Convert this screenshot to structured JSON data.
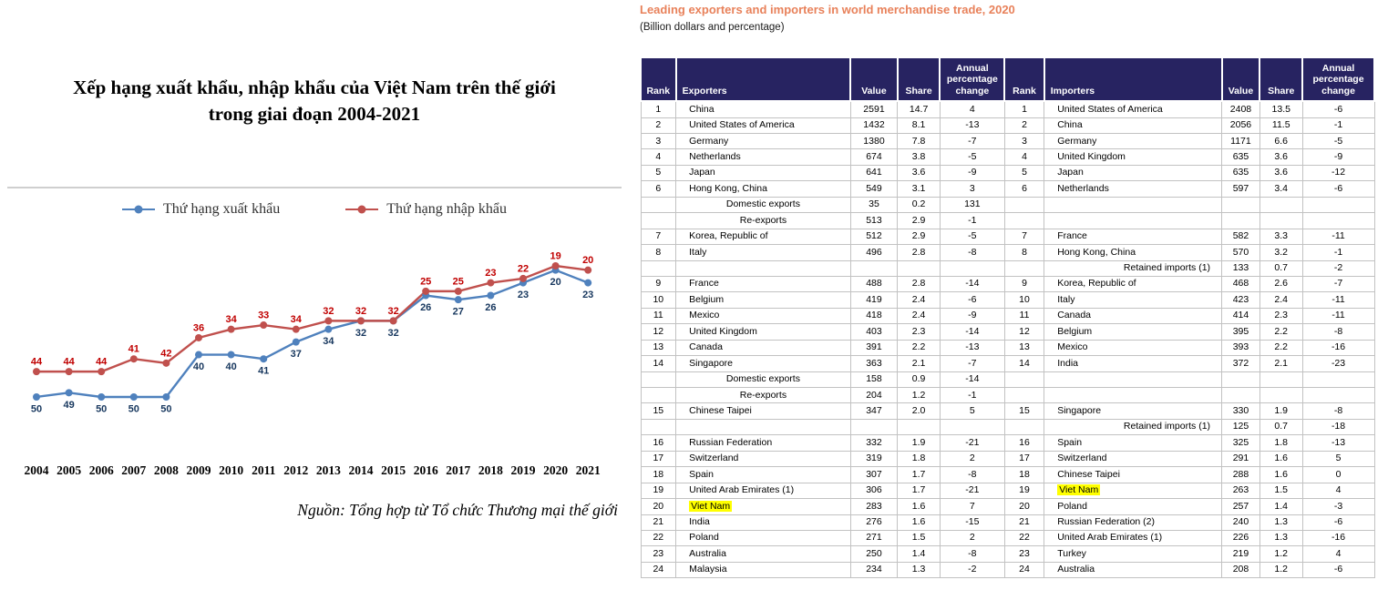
{
  "chart_panel": {
    "title_line1": "Xếp hạng xuất khẩu, nhập khẩu của Việt Nam trên thế giới",
    "title_line2": "trong giai đoạn 2004-2021",
    "source": "Nguồn: Tổng hợp từ Tổ chức Thương mại thế giới"
  },
  "table_panel": {
    "title": "Leading exporters and importers in world merchandise trade, 2020",
    "subtitle": "(Billion dollars and percentage)",
    "accent_color": "#e8815a",
    "header_bg": "#272361",
    "highlight_color": "#ffff00"
  },
  "chart_data": [
    {
      "type": "line",
      "title": "Xếp hạng xuất khẩu, nhập khẩu của Việt Nam trên thế giới trong giai đoạn 2004-2021",
      "x": [
        2004,
        2005,
        2006,
        2007,
        2008,
        2009,
        2010,
        2011,
        2012,
        2013,
        2014,
        2015,
        2016,
        2017,
        2018,
        2019,
        2020,
        2021
      ],
      "series": [
        {
          "name": "Thứ hạng xuất khẩu",
          "color": "#4f81bd",
          "label_color": "#17375e",
          "values": [
            50,
            49,
            50,
            50,
            50,
            40,
            40,
            41,
            37,
            34,
            32,
            32,
            26,
            27,
            26,
            23,
            20,
            23
          ]
        },
        {
          "name": "Thứ hạng nhập khẩu",
          "color": "#c0504d",
          "label_color": "#c00000",
          "values": [
            44,
            44,
            44,
            41,
            42,
            36,
            34,
            33,
            34,
            32,
            32,
            32,
            25,
            25,
            23,
            22,
            19,
            20
          ]
        }
      ],
      "y_inverted": true,
      "ylim": [
        19,
        50
      ],
      "grid": false,
      "legend_position": "top",
      "source": "Nguồn: Tổng hợp từ Tổ chức Thương mại thế giới"
    },
    {
      "type": "table",
      "title": "Leading exporters and importers in world merchandise trade, 2020",
      "subtitle": "(Billion dollars and percentage)",
      "columns": [
        "Rank",
        "Exporters",
        "Value",
        "Share",
        "Annual percentage change",
        "Rank",
        "Importers",
        "Value",
        "Share",
        "Annual percentage change"
      ],
      "rows": [
        {
          "c": [
            "1",
            "China",
            "2591",
            "14.7",
            "4",
            "1",
            "United States of America",
            "2408",
            "13.5",
            "-6"
          ]
        },
        {
          "c": [
            "2",
            "United States of America",
            "1432",
            "8.1",
            "-13",
            "2",
            "China",
            "2056",
            "11.5",
            "-1"
          ]
        },
        {
          "c": [
            "3",
            "Germany",
            "1380",
            "7.8",
            "-7",
            "3",
            "Germany",
            "1171",
            "6.6",
            "-5"
          ]
        },
        {
          "c": [
            "4",
            "Netherlands",
            "674",
            "3.8",
            "-5",
            "4",
            "United Kingdom",
            "635",
            "3.6",
            "-9"
          ]
        },
        {
          "c": [
            "5",
            "Japan",
            "641",
            "3.6",
            "-9",
            "5",
            "Japan",
            "635",
            "3.6",
            "-12"
          ]
        },
        {
          "c": [
            "6",
            "Hong Kong, China",
            "549",
            "3.1",
            "3",
            "6",
            "Netherlands",
            "597",
            "3.4",
            "-6"
          ]
        },
        {
          "c": [
            "",
            "Domestic exports",
            "35",
            "0.2",
            "131",
            "",
            "",
            "",
            "",
            ""
          ],
          "sub": [
            1
          ]
        },
        {
          "c": [
            "",
            "Re-exports",
            "513",
            "2.9",
            "-1",
            "",
            "",
            "",
            "",
            ""
          ],
          "sub": [
            1
          ]
        },
        {
          "c": [
            "7",
            "Korea, Republic of",
            "512",
            "2.9",
            "-5",
            "7",
            "France",
            "582",
            "3.3",
            "-11"
          ]
        },
        {
          "c": [
            "8",
            "Italy",
            "496",
            "2.8",
            "-8",
            "8",
            "Hong Kong, China",
            "570",
            "3.2",
            "-1"
          ]
        },
        {
          "c": [
            "",
            "",
            "",
            "",
            "",
            "",
            "Retained imports (1)",
            "133",
            "0.7",
            "-2"
          ],
          "sub": [
            6
          ]
        },
        {
          "c": [
            "9",
            "France",
            "488",
            "2.8",
            "-14",
            "9",
            "Korea, Republic of",
            "468",
            "2.6",
            "-7"
          ]
        },
        {
          "c": [
            "10",
            "Belgium",
            "419",
            "2.4",
            "-6",
            "10",
            "Italy",
            "423",
            "2.4",
            "-11"
          ]
        },
        {
          "c": [
            "11",
            "Mexico",
            "418",
            "2.4",
            "-9",
            "11",
            "Canada",
            "414",
            "2.3",
            "-11"
          ]
        },
        {
          "c": [
            "12",
            "United Kingdom",
            "403",
            "2.3",
            "-14",
            "12",
            "Belgium",
            "395",
            "2.2",
            "-8"
          ]
        },
        {
          "c": [
            "13",
            "Canada",
            "391",
            "2.2",
            "-13",
            "13",
            "Mexico",
            "393",
            "2.2",
            "-16"
          ]
        },
        {
          "c": [
            "14",
            "Singapore",
            "363",
            "2.1",
            "-7",
            "14",
            "India",
            "372",
            "2.1",
            "-23"
          ]
        },
        {
          "c": [
            "",
            "Domestic exports",
            "158",
            "0.9",
            "-14",
            "",
            "",
            "",
            "",
            ""
          ],
          "sub": [
            1
          ]
        },
        {
          "c": [
            "",
            "Re-exports",
            "204",
            "1.2",
            "-1",
            "",
            "",
            "",
            "",
            ""
          ],
          "sub": [
            1
          ]
        },
        {
          "c": [
            "15",
            "Chinese Taipei",
            "347",
            "2.0",
            "5",
            "15",
            "Singapore",
            "330",
            "1.9",
            "-8"
          ]
        },
        {
          "c": [
            "",
            "",
            "",
            "",
            "",
            "",
            "Retained imports (1)",
            "125",
            "0.7",
            "-18"
          ],
          "sub": [
            6
          ]
        },
        {
          "c": [
            "16",
            "Russian Federation",
            "332",
            "1.9",
            "-21",
            "16",
            "Spain",
            "325",
            "1.8",
            "-13"
          ]
        },
        {
          "c": [
            "17",
            "Switzerland",
            "319",
            "1.8",
            "2",
            "17",
            "Switzerland",
            "291",
            "1.6",
            "5"
          ]
        },
        {
          "c": [
            "18",
            "Spain",
            "307",
            "1.7",
            "-8",
            "18",
            "Chinese Taipei",
            "288",
            "1.6",
            "0"
          ]
        },
        {
          "c": [
            "19",
            "United Arab Emirates (1)",
            "306",
            "1.7",
            "-21",
            "19",
            "Viet Nam",
            "263",
            "1.5",
            "4"
          ],
          "hl": [
            6
          ]
        },
        {
          "c": [
            "20",
            "Viet Nam",
            "283",
            "1.6",
            "7",
            "20",
            "Poland",
            "257",
            "1.4",
            "-3"
          ],
          "hl": [
            1
          ]
        },
        {
          "c": [
            "21",
            "India",
            "276",
            "1.6",
            "-15",
            "21",
            "Russian Federation (2)",
            "240",
            "1.3",
            "-6"
          ]
        },
        {
          "c": [
            "22",
            "Poland",
            "271",
            "1.5",
            "2",
            "22",
            "United Arab Emirates (1)",
            "226",
            "1.3",
            "-16"
          ]
        },
        {
          "c": [
            "23",
            "Australia",
            "250",
            "1.4",
            "-8",
            "23",
            "Turkey",
            "219",
            "1.2",
            "4"
          ]
        },
        {
          "c": [
            "24",
            "Malaysia",
            "234",
            "1.3",
            "-2",
            "24",
            "Australia",
            "208",
            "1.2",
            "-6"
          ]
        }
      ]
    }
  ]
}
